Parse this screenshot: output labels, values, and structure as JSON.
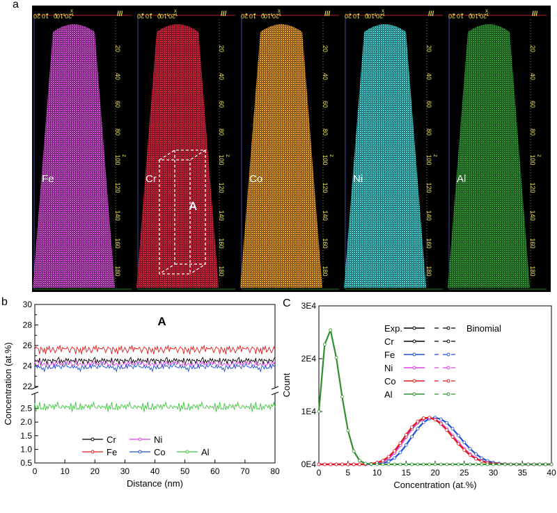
{
  "panel_labels": {
    "a": "a",
    "b": "b",
    "c": "C"
  },
  "panel_a": {
    "maps": [
      {
        "element": "Fe",
        "color": "#d34bd8"
      },
      {
        "element": "Cr",
        "color": "#e0203c"
      },
      {
        "element": "Co",
        "color": "#f0a020"
      },
      {
        "element": "Ni",
        "color": "#3fd8d8"
      },
      {
        "element": "Al",
        "color": "#2f9a32"
      }
    ],
    "x_axis_ticks": [
      "20",
      "10",
      "0",
      "-10",
      "-20"
    ],
    "x_axis_label": "x",
    "z_axis_ticks": [
      "20",
      "40",
      "60",
      "80",
      "100",
      "120",
      "140",
      "160",
      "180"
    ],
    "z_axis_label": "z",
    "region_label": "A"
  },
  "chart_data": [
    {
      "type": "line",
      "panel": "b",
      "title": "A",
      "xlabel": "Distance (nm)",
      "ylabel": "Concentration (at.%)",
      "xlim": [
        0,
        80
      ],
      "ylim_upper": [
        22,
        30
      ],
      "ylim_lower": [
        0.5,
        3.0
      ],
      "x_ticks": [
        "0",
        "10",
        "20",
        "30",
        "40",
        "50",
        "60",
        "70",
        "80"
      ],
      "y_ticks_upper": [
        "22",
        "24",
        "26",
        "28",
        "30"
      ],
      "y_ticks_lower": [
        "0.5",
        "1.0",
        "1.5",
        "2.0",
        "2.5"
      ],
      "legend_position": "bottom-center",
      "series": [
        {
          "name": "Cr",
          "color": "#000000",
          "mean": 24.5,
          "amp": 0.35,
          "x_start": 0,
          "x_step": 0.4,
          "noise": [
            0.3,
            -0.6,
            0.8,
            -0.2,
            0.5,
            -0.9,
            0.1,
            0.6,
            -0.4,
            0.9,
            -0.7,
            0.2,
            -0.3,
            0.7,
            -0.8,
            0.4,
            -0.1,
            0.5,
            -0.6,
            0.3,
            0.8,
            -0.5,
            0.1,
            -0.9,
            0.6,
            -0.2,
            0.4,
            -0.7,
            0.9,
            -0.3
          ]
        },
        {
          "name": "Fe",
          "color": "#e41a1a",
          "mean": 25.6,
          "amp": 0.45,
          "x_start": 0,
          "x_step": 0.4,
          "noise": [
            -0.4,
            0.7,
            -0.2,
            0.9,
            -0.8,
            0.3,
            0.6,
            -0.5,
            0.2,
            -0.9,
            0.8,
            -0.1,
            0.5,
            -0.6,
            0.4,
            0.9,
            -0.3,
            -0.7,
            0.1,
            0.6,
            -0.4,
            0.8,
            -0.9,
            0.3,
            -0.2,
            0.7,
            -0.5,
            0.2,
            0.6,
            -0.8
          ]
        },
        {
          "name": "Ni",
          "color": "#e040e6",
          "mean": 24.2,
          "amp": 0.35,
          "x_start": 0,
          "x_step": 0.4,
          "noise": [
            0.6,
            -0.3,
            0.2,
            -0.8,
            0.9,
            -0.1,
            -0.6,
            0.4,
            0.7,
            -0.5,
            0.1,
            0.8,
            -0.9,
            0.3,
            -0.2,
            0.5,
            -0.7,
            0.6,
            0.2,
            -0.4,
            0.9,
            -0.6,
            0.3,
            0.1,
            -0.8,
            0.7,
            -0.3,
            0.4,
            -0.5,
            0.2
          ]
        },
        {
          "name": "Co",
          "color": "#1f4fd6",
          "mean": 23.9,
          "amp": 0.4,
          "x_start": 0,
          "x_step": 0.4,
          "noise": [
            -0.7,
            0.4,
            -0.1,
            0.6,
            -0.5,
            0.8,
            -0.3,
            0.2,
            -0.9,
            0.5,
            0.3,
            -0.6,
            0.9,
            -0.2,
            0.1,
            -0.8,
            0.7,
            -0.4,
            0.6,
            -0.3,
            -0.1,
            0.5,
            -0.7,
            0.8,
            -0.4,
            0.2,
            0.9,
            -0.6,
            0.3,
            -0.9
          ]
        },
        {
          "name": "Al",
          "color": "#3ec73e",
          "mean": 2.55,
          "amp": 0.2,
          "x_start": 0,
          "x_step": 0.4,
          "noise": [
            0.4,
            -0.8,
            0.6,
            -0.3,
            0.9,
            -0.5,
            0.2,
            -0.9,
            0.7,
            -0.1,
            0.5,
            -0.6,
            0.3,
            0.8,
            -0.4,
            0.1,
            -0.7,
            0.9,
            -0.2,
            0.6,
            -0.5,
            0.3,
            -0.8,
            0.4,
            0.7,
            -0.3,
            0.2,
            -0.6,
            0.5,
            -0.1
          ]
        }
      ]
    },
    {
      "type": "line",
      "panel": "c",
      "xlabel": "Concentration (at.%)",
      "ylabel": "Count",
      "xlim": [
        0,
        40
      ],
      "ylim": [
        0,
        30000
      ],
      "x_ticks": [
        "0",
        "5",
        "10",
        "15",
        "20",
        "25",
        "30",
        "35",
        "40"
      ],
      "y_ticks": [
        "0E4",
        "1E4",
        "2E4",
        "3E4"
      ],
      "legend_position": "top-right",
      "legend_header": {
        "exp": "Exp.",
        "binomial": "Binomial"
      },
      "x": [
        0,
        1,
        2,
        3,
        4,
        5,
        6,
        7,
        8,
        9,
        10,
        11,
        12,
        13,
        14,
        15,
        16,
        17,
        18,
        19,
        20,
        21,
        22,
        23,
        24,
        25,
        26,
        27,
        28,
        29,
        30,
        31,
        32,
        33,
        34,
        35,
        36,
        37,
        38,
        39,
        40
      ],
      "series": [
        {
          "name": "Cr",
          "color": "#000000",
          "values": [
            0,
            0,
            0,
            0,
            0,
            0,
            0,
            0,
            0,
            60,
            200,
            520,
            1150,
            2200,
            3600,
            5200,
            6700,
            7900,
            8600,
            8800,
            8500,
            7800,
            6700,
            5400,
            4100,
            2900,
            1900,
            1150,
            640,
            330,
            160,
            70,
            30,
            10,
            0,
            0,
            0,
            0,
            0,
            0,
            0
          ]
        },
        {
          "name": "Fe",
          "color": "#1f4fd6",
          "values": [
            0,
            0,
            0,
            0,
            0,
            0,
            0,
            0,
            0,
            0,
            80,
            220,
            560,
            1200,
            2250,
            3650,
            5250,
            6750,
            7950,
            8650,
            8850,
            8550,
            7850,
            6750,
            5450,
            4150,
            2950,
            1950,
            1180,
            660,
            340,
            160,
            70,
            30,
            10,
            0,
            0,
            0,
            0,
            0,
            0
          ]
        },
        {
          "name": "Ni",
          "color": "#e040e6",
          "values": [
            0,
            0,
            0,
            0,
            0,
            0,
            0,
            0,
            0,
            70,
            210,
            540,
            1180,
            2230,
            3630,
            5230,
            6730,
            7930,
            8630,
            8830,
            8530,
            7830,
            6730,
            5430,
            4130,
            2930,
            1930,
            1160,
            650,
            335,
            160,
            70,
            30,
            10,
            0,
            0,
            0,
            0,
            0,
            0,
            0
          ]
        },
        {
          "name": "Co",
          "color": "#e41a1a",
          "values": [
            0,
            0,
            0,
            0,
            0,
            0,
            0,
            0,
            30,
            120,
            320,
            720,
            1450,
            2550,
            4000,
            5600,
            7050,
            8150,
            8750,
            8850,
            8450,
            7650,
            6500,
            5200,
            3900,
            2700,
            1750,
            1050,
            580,
            290,
            140,
            60,
            25,
            10,
            0,
            0,
            0,
            0,
            0,
            0,
            0
          ]
        },
        {
          "name": "Al",
          "color": "#2f8f2f",
          "values": [
            10000,
            22700,
            25400,
            20200,
            12800,
            6400,
            2500,
            700,
            150,
            20,
            0,
            0,
            0,
            0,
            0,
            0,
            0,
            0,
            0,
            0,
            0,
            0,
            0,
            0,
            0,
            0,
            0,
            0,
            0,
            0,
            0,
            0,
            0,
            0,
            0,
            0,
            0,
            0,
            0,
            0,
            0
          ]
        }
      ]
    }
  ]
}
